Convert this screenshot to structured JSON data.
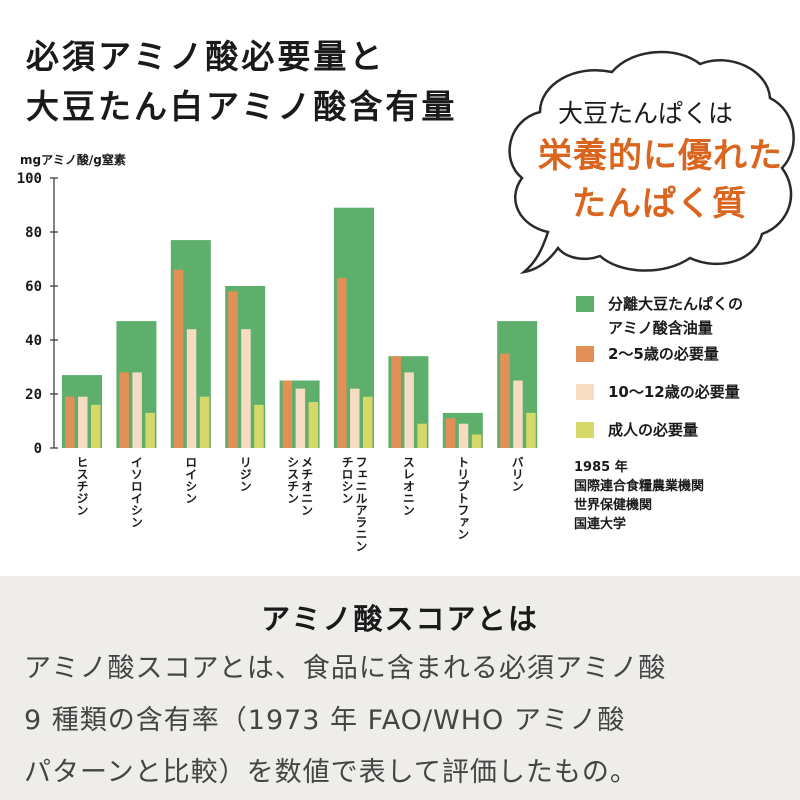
{
  "title": {
    "line1": "必須アミノ酸必要量と",
    "line2": "大豆たん白アミノ酸含有量"
  },
  "bubble": {
    "line1": "大豆たんぱくは",
    "line2": "栄養的に優れた",
    "line3": "たんぱく質"
  },
  "legend": [
    {
      "label": "分離大豆たんぱくの",
      "label2": "アミノ酸含油量",
      "color": "#5daf6b"
    },
    {
      "label": "2～5歳の必要量",
      "color": "#e39058"
    },
    {
      "label": "10～12歳の必要量",
      "color": "#f7dbc2"
    },
    {
      "label": "成人の必要量",
      "color": "#d6d86a"
    }
  ],
  "source": {
    "line1": "1985 年",
    "line2": "国際連合食糧農業機関",
    "line3": "世界保健機関",
    "line4": "国連大学"
  },
  "chart_data": {
    "type": "bar",
    "ylabel": "mgアミノ酸/g窒素",
    "ylim": [
      0,
      100
    ],
    "yticks": [
      0,
      20,
      40,
      60,
      80,
      100
    ],
    "grid": false,
    "legend_position": "right",
    "categories": [
      [
        "ヒスチジン"
      ],
      [
        "イソロイシン"
      ],
      [
        "ロイシン"
      ],
      [
        "リジン"
      ],
      [
        "メチオニン",
        "シスチン"
      ],
      [
        "フェニルアラニン",
        "チロシン"
      ],
      [
        "スレオニン"
      ],
      [
        "トリプトファン"
      ],
      [
        "バリン"
      ]
    ],
    "series": [
      {
        "name": "分離大豆たんぱくのアミノ酸含油量",
        "values": [
          27,
          47,
          77,
          60,
          25,
          89,
          34,
          13,
          47
        ],
        "color": "#5daf6b"
      },
      {
        "name": "2～5歳の必要量",
        "values": [
          19,
          28,
          66,
          58,
          25,
          63,
          34,
          11,
          35
        ],
        "color": "#e39058"
      },
      {
        "name": "10～12歳の必要量",
        "values": [
          19,
          28,
          44,
          44,
          22,
          22,
          28,
          9,
          25
        ],
        "color": "#f7dbc2"
      },
      {
        "name": "成人の必要量",
        "values": [
          16,
          13,
          19,
          16,
          17,
          19,
          9,
          5,
          13
        ],
        "color": "#d6d86a"
      }
    ]
  },
  "bottom": {
    "title": "アミノ酸スコアとは",
    "line1": "アミノ酸スコアとは、食品に含まれる必須アミノ酸",
    "line2": "9 種類の含有率（1973 年 FAO/WHO アミノ酸",
    "line3": "パターンと比較）を数値で表して評価したもの。"
  }
}
